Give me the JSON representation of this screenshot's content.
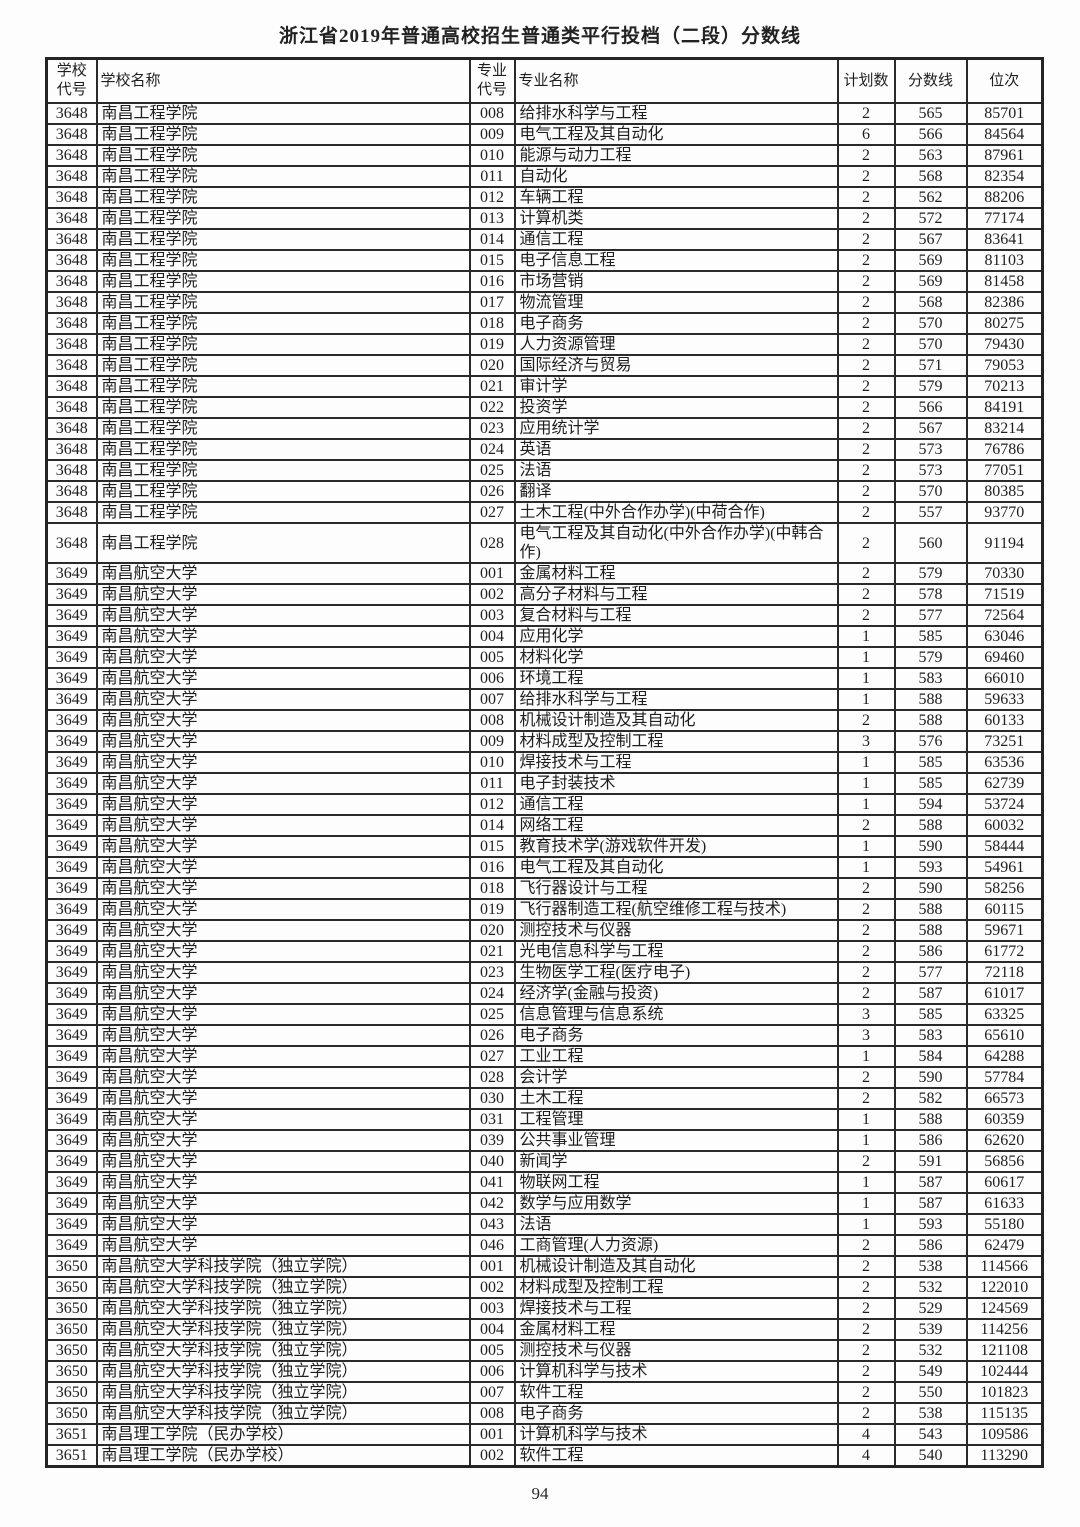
{
  "title": "浙江省2019年普通高校招生普通类平行投档（二段）分数线",
  "page_number": "94",
  "table": {
    "headers": [
      "学校代号",
      "学校名称",
      "专业代号",
      "专业名称",
      "计划数",
      "分数线",
      "位次"
    ],
    "rows": [
      [
        "3648",
        "南昌工程学院",
        "008",
        "给排水科学与工程",
        "2",
        "565",
        "85701"
      ],
      [
        "3648",
        "南昌工程学院",
        "009",
        "电气工程及其自动化",
        "6",
        "566",
        "84564"
      ],
      [
        "3648",
        "南昌工程学院",
        "010",
        "能源与动力工程",
        "2",
        "563",
        "87961"
      ],
      [
        "3648",
        "南昌工程学院",
        "011",
        "自动化",
        "2",
        "568",
        "82354"
      ],
      [
        "3648",
        "南昌工程学院",
        "012",
        "车辆工程",
        "2",
        "562",
        "88206"
      ],
      [
        "3648",
        "南昌工程学院",
        "013",
        "计算机类",
        "2",
        "572",
        "77174"
      ],
      [
        "3648",
        "南昌工程学院",
        "014",
        "通信工程",
        "2",
        "567",
        "83641"
      ],
      [
        "3648",
        "南昌工程学院",
        "015",
        "电子信息工程",
        "2",
        "569",
        "81103"
      ],
      [
        "3648",
        "南昌工程学院",
        "016",
        "市场营销",
        "2",
        "569",
        "81458"
      ],
      [
        "3648",
        "南昌工程学院",
        "017",
        "物流管理",
        "2",
        "568",
        "82386"
      ],
      [
        "3648",
        "南昌工程学院",
        "018",
        "电子商务",
        "2",
        "570",
        "80275"
      ],
      [
        "3648",
        "南昌工程学院",
        "019",
        "人力资源管理",
        "2",
        "570",
        "79430"
      ],
      [
        "3648",
        "南昌工程学院",
        "020",
        "国际经济与贸易",
        "2",
        "571",
        "79053"
      ],
      [
        "3648",
        "南昌工程学院",
        "021",
        "审计学",
        "2",
        "579",
        "70213"
      ],
      [
        "3648",
        "南昌工程学院",
        "022",
        "投资学",
        "2",
        "566",
        "84191"
      ],
      [
        "3648",
        "南昌工程学院",
        "023",
        "应用统计学",
        "2",
        "567",
        "83214"
      ],
      [
        "3648",
        "南昌工程学院",
        "024",
        "英语",
        "2",
        "573",
        "76786"
      ],
      [
        "3648",
        "南昌工程学院",
        "025",
        "法语",
        "2",
        "573",
        "77051"
      ],
      [
        "3648",
        "南昌工程学院",
        "026",
        "翻译",
        "2",
        "570",
        "80385"
      ],
      [
        "3648",
        "南昌工程学院",
        "027",
        "土木工程(中外合作办学)(中荷合作)",
        "2",
        "557",
        "93770"
      ],
      [
        "3648",
        "南昌工程学院",
        "028",
        "电气工程及其自动化(中外合作办学)(中韩合作)",
        "2",
        "560",
        "91194"
      ],
      [
        "3649",
        "南昌航空大学",
        "001",
        "金属材料工程",
        "2",
        "579",
        "70330"
      ],
      [
        "3649",
        "南昌航空大学",
        "002",
        "高分子材料与工程",
        "2",
        "578",
        "71519"
      ],
      [
        "3649",
        "南昌航空大学",
        "003",
        "复合材料与工程",
        "2",
        "577",
        "72564"
      ],
      [
        "3649",
        "南昌航空大学",
        "004",
        "应用化学",
        "1",
        "585",
        "63046"
      ],
      [
        "3649",
        "南昌航空大学",
        "005",
        "材料化学",
        "1",
        "579",
        "69460"
      ],
      [
        "3649",
        "南昌航空大学",
        "006",
        "环境工程",
        "1",
        "583",
        "66010"
      ],
      [
        "3649",
        "南昌航空大学",
        "007",
        "给排水科学与工程",
        "1",
        "588",
        "59633"
      ],
      [
        "3649",
        "南昌航空大学",
        "008",
        "机械设计制造及其自动化",
        "2",
        "588",
        "60133"
      ],
      [
        "3649",
        "南昌航空大学",
        "009",
        "材料成型及控制工程",
        "3",
        "576",
        "73251"
      ],
      [
        "3649",
        "南昌航空大学",
        "010",
        "焊接技术与工程",
        "1",
        "585",
        "63536"
      ],
      [
        "3649",
        "南昌航空大学",
        "011",
        "电子封装技术",
        "1",
        "585",
        "62739"
      ],
      [
        "3649",
        "南昌航空大学",
        "012",
        "通信工程",
        "1",
        "594",
        "53724"
      ],
      [
        "3649",
        "南昌航空大学",
        "014",
        "网络工程",
        "2",
        "588",
        "60032"
      ],
      [
        "3649",
        "南昌航空大学",
        "015",
        "教育技术学(游戏软件开发)",
        "1",
        "590",
        "58444"
      ],
      [
        "3649",
        "南昌航空大学",
        "016",
        "电气工程及其自动化",
        "1",
        "593",
        "54961"
      ],
      [
        "3649",
        "南昌航空大学",
        "018",
        "飞行器设计与工程",
        "2",
        "590",
        "58256"
      ],
      [
        "3649",
        "南昌航空大学",
        "019",
        "飞行器制造工程(航空维修工程与技术)",
        "2",
        "588",
        "60115"
      ],
      [
        "3649",
        "南昌航空大学",
        "020",
        "测控技术与仪器",
        "2",
        "588",
        "59671"
      ],
      [
        "3649",
        "南昌航空大学",
        "021",
        "光电信息科学与工程",
        "2",
        "586",
        "61772"
      ],
      [
        "3649",
        "南昌航空大学",
        "023",
        "生物医学工程(医疗电子)",
        "2",
        "577",
        "72118"
      ],
      [
        "3649",
        "南昌航空大学",
        "024",
        "经济学(金融与投资)",
        "2",
        "587",
        "61017"
      ],
      [
        "3649",
        "南昌航空大学",
        "025",
        "信息管理与信息系统",
        "3",
        "585",
        "63325"
      ],
      [
        "3649",
        "南昌航空大学",
        "026",
        "电子商务",
        "3",
        "583",
        "65610"
      ],
      [
        "3649",
        "南昌航空大学",
        "027",
        "工业工程",
        "1",
        "584",
        "64288"
      ],
      [
        "3649",
        "南昌航空大学",
        "028",
        "会计学",
        "2",
        "590",
        "57784"
      ],
      [
        "3649",
        "南昌航空大学",
        "030",
        "土木工程",
        "2",
        "582",
        "66573"
      ],
      [
        "3649",
        "南昌航空大学",
        "031",
        "工程管理",
        "1",
        "588",
        "60359"
      ],
      [
        "3649",
        "南昌航空大学",
        "039",
        "公共事业管理",
        "1",
        "586",
        "62620"
      ],
      [
        "3649",
        "南昌航空大学",
        "040",
        "新闻学",
        "2",
        "591",
        "56856"
      ],
      [
        "3649",
        "南昌航空大学",
        "041",
        "物联网工程",
        "1",
        "587",
        "60617"
      ],
      [
        "3649",
        "南昌航空大学",
        "042",
        "数学与应用数学",
        "1",
        "587",
        "61633"
      ],
      [
        "3649",
        "南昌航空大学",
        "043",
        "法语",
        "1",
        "593",
        "55180"
      ],
      [
        "3649",
        "南昌航空大学",
        "046",
        "工商管理(人力资源)",
        "2",
        "586",
        "62479"
      ],
      [
        "3650",
        "南昌航空大学科技学院（独立学院）",
        "001",
        "机械设计制造及其自动化",
        "2",
        "538",
        "114566"
      ],
      [
        "3650",
        "南昌航空大学科技学院（独立学院）",
        "002",
        "材料成型及控制工程",
        "2",
        "532",
        "122010"
      ],
      [
        "3650",
        "南昌航空大学科技学院（独立学院）",
        "003",
        "焊接技术与工程",
        "2",
        "529",
        "124569"
      ],
      [
        "3650",
        "南昌航空大学科技学院（独立学院）",
        "004",
        "金属材料工程",
        "2",
        "539",
        "114256"
      ],
      [
        "3650",
        "南昌航空大学科技学院（独立学院）",
        "005",
        "测控技术与仪器",
        "2",
        "532",
        "121108"
      ],
      [
        "3650",
        "南昌航空大学科技学院（独立学院）",
        "006",
        "计算机科学与技术",
        "2",
        "549",
        "102444"
      ],
      [
        "3650",
        "南昌航空大学科技学院（独立学院）",
        "007",
        "软件工程",
        "2",
        "550",
        "101823"
      ],
      [
        "3650",
        "南昌航空大学科技学院（独立学院）",
        "008",
        "电子商务",
        "2",
        "538",
        "115135"
      ],
      [
        "3651",
        "南昌理工学院（民办学校）",
        "001",
        "计算机科学与技术",
        "4",
        "543",
        "109586"
      ],
      [
        "3651",
        "南昌理工学院（民办学校）",
        "002",
        "软件工程",
        "4",
        "540",
        "113290"
      ]
    ]
  }
}
